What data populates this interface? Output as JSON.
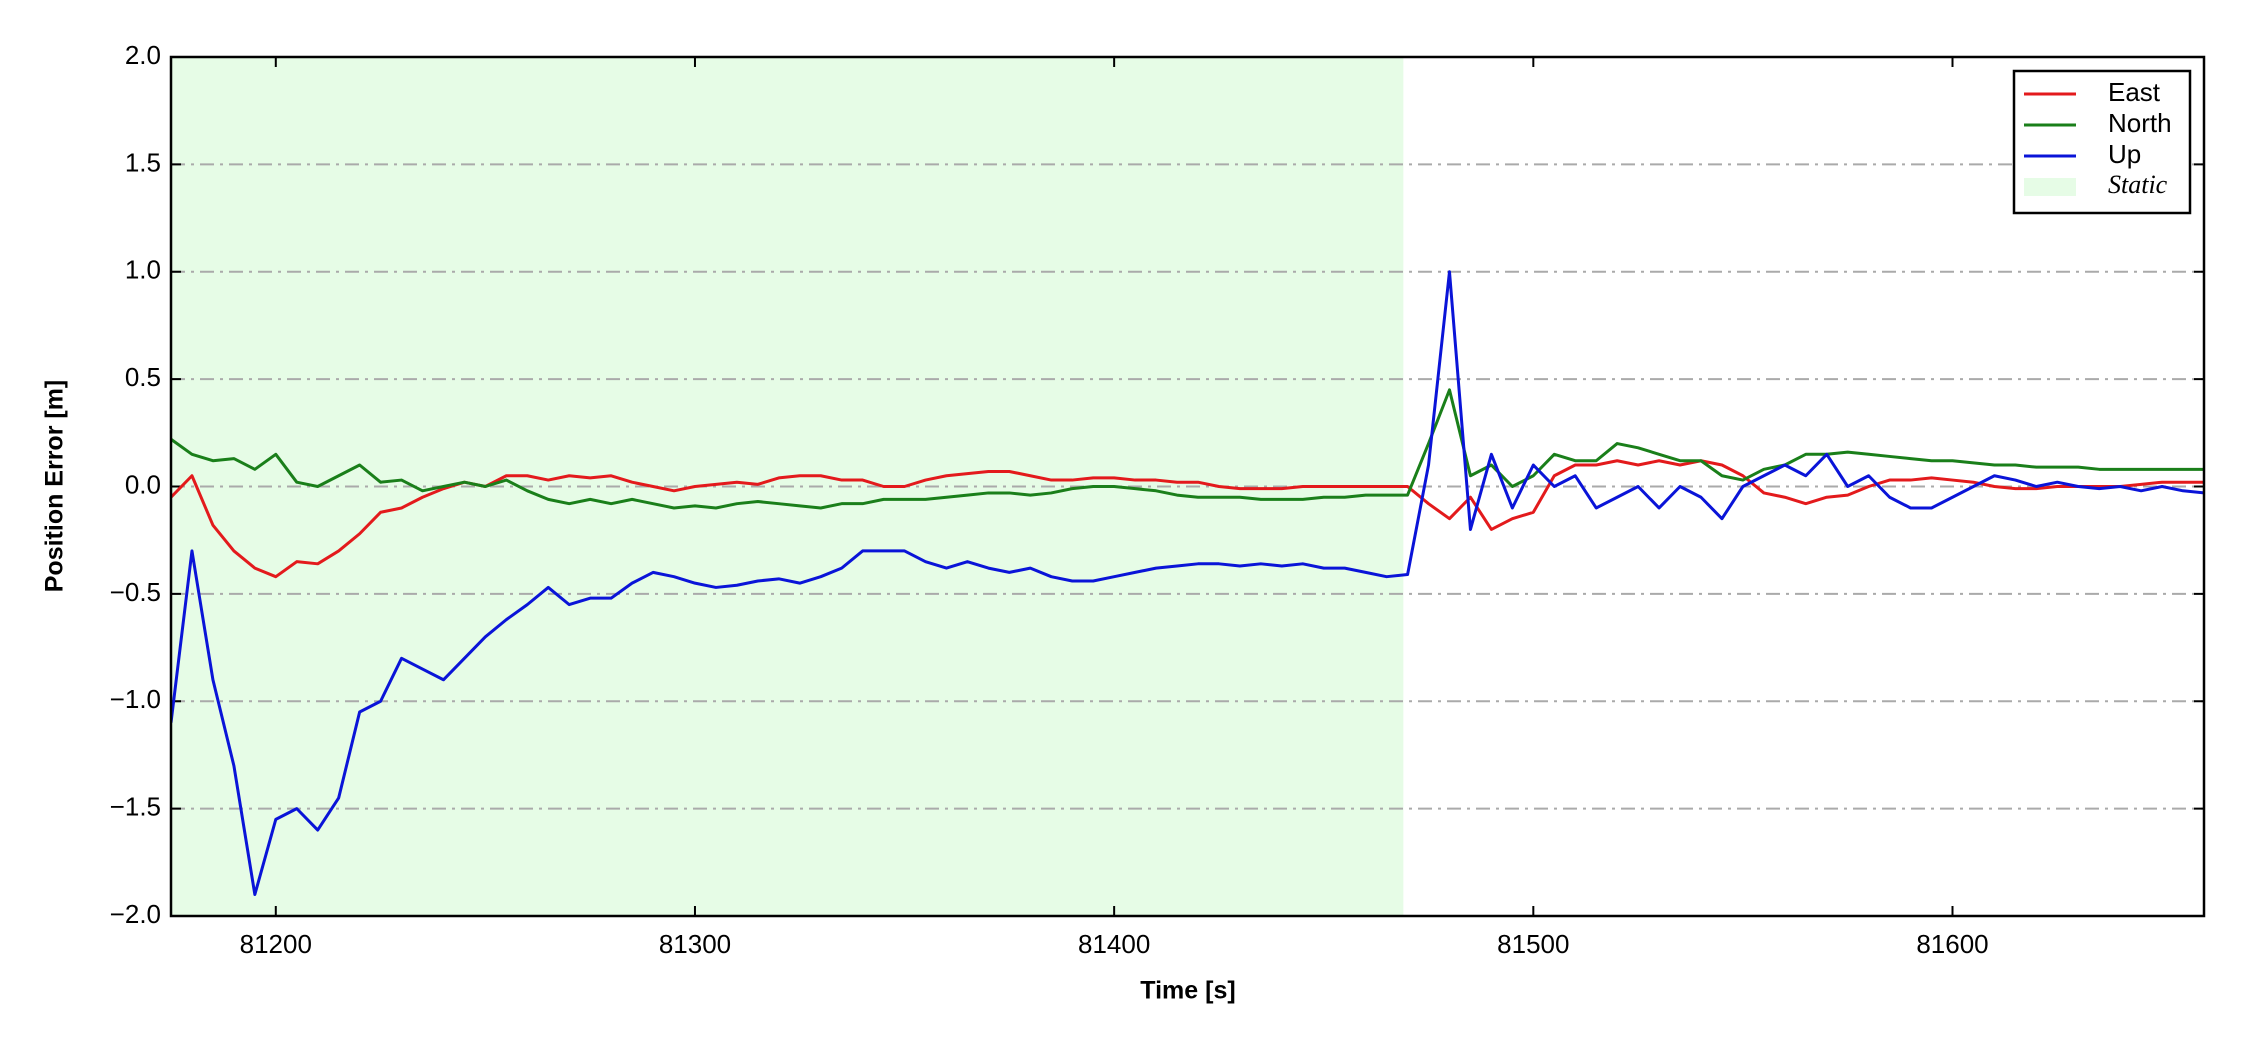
{
  "chart_data": {
    "type": "line",
    "xlabel": "Time [s]",
    "ylabel": "Position Error [m]",
    "x": [
      81175,
      81180,
      81185,
      81190,
      81195,
      81200,
      81205,
      81210,
      81215,
      81220,
      81225,
      81230,
      81235,
      81240,
      81245,
      81250,
      81255,
      81260,
      81265,
      81270,
      81275,
      81280,
      81285,
      81290,
      81295,
      81300,
      81305,
      81310,
      81315,
      81320,
      81325,
      81330,
      81335,
      81340,
      81345,
      81350,
      81355,
      81360,
      81365,
      81370,
      81375,
      81380,
      81385,
      81390,
      81395,
      81400,
      81405,
      81410,
      81415,
      81420,
      81425,
      81430,
      81435,
      81440,
      81445,
      81450,
      81455,
      81460,
      81465,
      81470,
      81475,
      81480,
      81485,
      81490,
      81495,
      81500,
      81505,
      81510,
      81515,
      81520,
      81525,
      81530,
      81535,
      81540,
      81545,
      81550,
      81555,
      81560,
      81565,
      81570,
      81575,
      81580,
      81585,
      81590,
      81595,
      81600,
      81605,
      81610,
      81615,
      81620,
      81625,
      81630,
      81635,
      81640,
      81645,
      81650,
      81655,
      81660
    ],
    "series": [
      {
        "name": "East",
        "color": "#e31a1c",
        "values": [
          -0.05,
          0.05,
          -0.18,
          -0.3,
          -0.38,
          -0.42,
          -0.35,
          -0.36,
          -0.3,
          -0.22,
          -0.12,
          -0.1,
          -0.05,
          -0.01,
          0.02,
          0.0,
          0.05,
          0.05,
          0.03,
          0.05,
          0.04,
          0.05,
          0.02,
          0.0,
          -0.02,
          0.0,
          0.01,
          0.02,
          0.01,
          0.04,
          0.05,
          0.05,
          0.03,
          0.03,
          0.0,
          0.0,
          0.03,
          0.05,
          0.06,
          0.07,
          0.07,
          0.05,
          0.03,
          0.03,
          0.04,
          0.04,
          0.03,
          0.03,
          0.02,
          0.02,
          0.0,
          -0.01,
          -0.01,
          -0.01,
          0.0,
          0.0,
          0.0,
          0.0,
          0.0,
          0.0,
          -0.08,
          -0.15,
          -0.05,
          -0.2,
          -0.15,
          -0.12,
          0.05,
          0.1,
          0.1,
          0.12,
          0.1,
          0.12,
          0.1,
          0.12,
          0.1,
          0.05,
          -0.03,
          -0.05,
          -0.08,
          -0.05,
          -0.04,
          0.0,
          0.03,
          0.03,
          0.04,
          0.03,
          0.02,
          0.0,
          -0.01,
          -0.01,
          0.0,
          0.0,
          0.0,
          0.0,
          0.01,
          0.02,
          0.02,
          0.02
        ]
      },
      {
        "name": "North",
        "color": "#1a7f1a",
        "values": [
          0.22,
          0.15,
          0.12,
          0.13,
          0.08,
          0.15,
          0.02,
          0.0,
          0.05,
          0.1,
          0.02,
          0.03,
          -0.02,
          0.0,
          0.02,
          0.0,
          0.03,
          -0.02,
          -0.06,
          -0.08,
          -0.06,
          -0.08,
          -0.06,
          -0.08,
          -0.1,
          -0.09,
          -0.1,
          -0.08,
          -0.07,
          -0.08,
          -0.09,
          -0.1,
          -0.08,
          -0.08,
          -0.06,
          -0.06,
          -0.06,
          -0.05,
          -0.04,
          -0.03,
          -0.03,
          -0.04,
          -0.03,
          -0.01,
          0.0,
          0.0,
          -0.01,
          -0.02,
          -0.04,
          -0.05,
          -0.05,
          -0.05,
          -0.06,
          -0.06,
          -0.06,
          -0.05,
          -0.05,
          -0.04,
          -0.04,
          -0.04,
          0.2,
          0.45,
          0.05,
          0.1,
          0.0,
          0.05,
          0.15,
          0.12,
          0.12,
          0.2,
          0.18,
          0.15,
          0.12,
          0.12,
          0.05,
          0.03,
          0.08,
          0.1,
          0.15,
          0.15,
          0.16,
          0.15,
          0.14,
          0.13,
          0.12,
          0.12,
          0.11,
          0.1,
          0.1,
          0.09,
          0.09,
          0.09,
          0.08,
          0.08,
          0.08,
          0.08,
          0.08,
          0.08
        ]
      },
      {
        "name": "Up",
        "color": "#0a14d8",
        "values": [
          -1.1,
          -0.3,
          -0.9,
          -1.3,
          -1.9,
          -1.55,
          -1.5,
          -1.6,
          -1.45,
          -1.05,
          -1.0,
          -0.8,
          -0.85,
          -0.9,
          -0.8,
          -0.7,
          -0.62,
          -0.55,
          -0.47,
          -0.55,
          -0.52,
          -0.52,
          -0.45,
          -0.4,
          -0.42,
          -0.45,
          -0.47,
          -0.46,
          -0.44,
          -0.43,
          -0.45,
          -0.42,
          -0.38,
          -0.3,
          -0.3,
          -0.3,
          -0.35,
          -0.38,
          -0.35,
          -0.38,
          -0.4,
          -0.38,
          -0.42,
          -0.44,
          -0.44,
          -0.42,
          -0.4,
          -0.38,
          -0.37,
          -0.36,
          -0.36,
          -0.37,
          -0.36,
          -0.37,
          -0.36,
          -0.38,
          -0.38,
          -0.4,
          -0.42,
          -0.41,
          0.1,
          1.0,
          -0.2,
          0.15,
          -0.1,
          0.1,
          0.0,
          0.05,
          -0.1,
          -0.05,
          0.0,
          -0.1,
          0.0,
          -0.05,
          -0.15,
          0.0,
          0.05,
          0.1,
          0.05,
          0.15,
          0.0,
          0.05,
          -0.05,
          -0.1,
          -0.1,
          -0.05,
          0.0,
          0.05,
          0.03,
          0.0,
          0.02,
          0.0,
          -0.01,
          0.0,
          -0.02,
          0.0,
          -0.02,
          -0.03
        ]
      }
    ],
    "spans": [
      {
        "name": "Static",
        "color": "#e6fce6",
        "range": [
          81175,
          81469
        ]
      }
    ],
    "xlim": [
      81175,
      81660
    ],
    "xticks": [
      81200,
      81300,
      81400,
      81500,
      81600
    ],
    "ylim": [
      -2,
      2
    ],
    "yticks": [
      {
        "value": -2,
        "label": "−2.0"
      },
      {
        "value": -1.5,
        "label": "−1.5"
      },
      {
        "value": -1,
        "label": "−1.0"
      },
      {
        "value": -0.5,
        "label": "−0.5"
      },
      {
        "value": 0,
        "label": "0.0"
      },
      0.5,
      {
        "value": 1,
        "label": "1.0"
      },
      1.5,
      {
        "value": 2,
        "label": "2.0"
      }
    ],
    "grid": true,
    "legend": "upper right"
  }
}
